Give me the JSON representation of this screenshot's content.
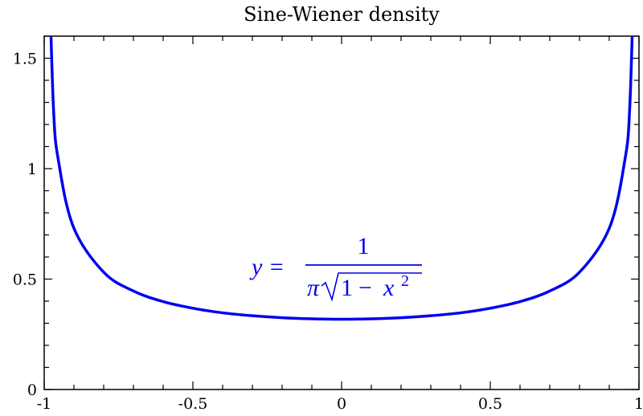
{
  "chart_data": {
    "type": "line",
    "title": "Sine-Wiener density",
    "xlabel": "",
    "ylabel": "",
    "xlim": [
      -1,
      1
    ],
    "ylim": [
      0,
      1.6
    ],
    "grid": false,
    "x_ticks": [
      "-1",
      "-0.5",
      "0",
      "0.5",
      "1"
    ],
    "x_tick_values": [
      -1,
      -0.5,
      0,
      0.5,
      1
    ],
    "y_ticks": [
      "0",
      "0.5",
      "1",
      "1.5"
    ],
    "y_tick_values": [
      0,
      0.5,
      1,
      1.5
    ],
    "series": [
      {
        "color": "#0000ee",
        "x": [
          -0.99,
          -0.97,
          -0.95,
          -0.9,
          -0.8,
          -0.7,
          -0.6,
          -0.5,
          -0.4,
          -0.3,
          -0.2,
          -0.1,
          0,
          0.1,
          0.2,
          0.3,
          0.4,
          0.5,
          0.6,
          0.7,
          0.8,
          0.9,
          0.95,
          0.97,
          0.99
        ],
        "y": [
          2.256,
          1.309,
          1.019,
          0.73,
          0.531,
          0.446,
          0.398,
          0.368,
          0.347,
          0.334,
          0.325,
          0.32,
          0.318,
          0.32,
          0.325,
          0.334,
          0.347,
          0.368,
          0.398,
          0.446,
          0.531,
          0.73,
          1.019,
          1.309,
          2.256
        ]
      }
    ],
    "annotation": {
      "lhs": "y =",
      "numerator": "1",
      "denominator_pi": "π",
      "radicand_one": "1",
      "radicand_op": "−",
      "radicand_var": "x",
      "radicand_exp": "2"
    }
  }
}
